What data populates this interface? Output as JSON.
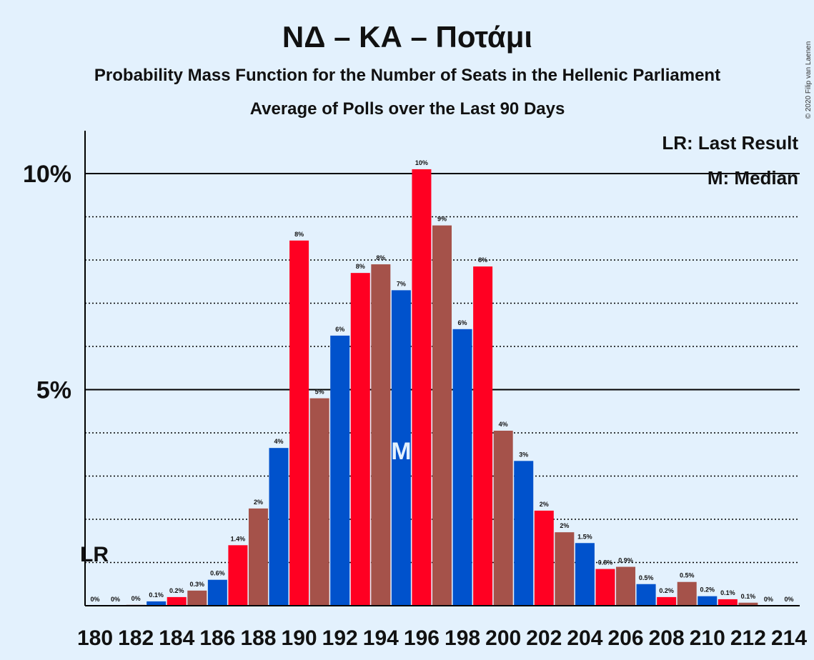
{
  "chart_data": {
    "type": "bar",
    "title": "ΝΔ – ΚΑ – Ποτάμι",
    "subtitle": "Probability Mass Function for the Number of Seats in the Hellenic Parliament",
    "subtitle2": "Average of Polls over the Last 90 Days",
    "copyright": "© 2020 Filip van Laenen",
    "legend": {
      "lr": "LR: Last Result",
      "median": "M: Median",
      "position": "top-right"
    },
    "last_result_label": "LR",
    "last_result_seat": 180,
    "median_label": "M",
    "median_seat": 195,
    "ylim": [
      0,
      11
    ],
    "y_ticks": [
      {
        "value": 5,
        "label": "5%"
      },
      {
        "value": 10,
        "label": "10%"
      }
    ],
    "x_tick_labels": [
      "180",
      "182",
      "184",
      "186",
      "188",
      "190",
      "192",
      "194",
      "196",
      "198",
      "200",
      "202",
      "204",
      "206",
      "208",
      "210",
      "212",
      "214"
    ],
    "colors": [
      "#0052CC",
      "#FF0022",
      "#A5524A"
    ],
    "seats": [
      180,
      181,
      182,
      183,
      184,
      185,
      186,
      187,
      188,
      189,
      190,
      191,
      192,
      193,
      194,
      195,
      196,
      197,
      198,
      199,
      200,
      201,
      202,
      203,
      204,
      205,
      206,
      207,
      208,
      209,
      210,
      211,
      212,
      213,
      214
    ],
    "values": [
      0,
      0,
      0.02,
      0.1,
      0.2,
      0.35,
      0.6,
      1.4,
      2.25,
      3.65,
      8.45,
      4.8,
      6.25,
      7.7,
      7.9,
      7.3,
      10.1,
      8.8,
      6.4,
      7.85,
      4.05,
      3.35,
      2.2,
      1.7,
      1.45,
      0.85,
      0.9,
      0.5,
      0.2,
      0.55,
      0.22,
      0.15,
      0.07,
      0,
      0
    ],
    "labels": [
      "0%",
      "0%",
      "0%",
      "0.1%",
      "0.2%",
      "0.3%",
      "0.6%",
      "1.4%",
      "2%",
      "4%",
      "8%",
      "5%",
      "6%",
      "8%",
      "8%",
      "7%",
      "10%",
      "9%",
      "6%",
      "8%",
      "4%",
      "3%",
      "2%",
      "2%",
      "1.5%",
      "0.8%",
      "0.9%",
      "0.5%",
      "0.2%",
      "0.5%",
      "0.2%",
      "0.1%",
      "0.1%",
      "0%",
      "0%"
    ],
    "grid": "dotted at every 1%, solid at 5% and 10%"
  }
}
